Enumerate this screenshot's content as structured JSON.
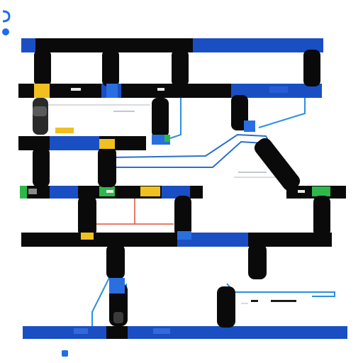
{
  "header": {
    "title_line": "",
    "subtitle_line": ""
  },
  "footer": {
    "left_caption": "",
    "right_caption": ""
  },
  "colors": {
    "bar_blue": "#1a4fc4",
    "bar_dark": "#0a0a0a",
    "pipe_blue": "#2b8fe0",
    "pipe_red": "#e0503a",
    "accent_yellow": "#f0c020",
    "accent_green": "#2fb84a",
    "brand_blue": "#1e6fe8",
    "text_gray": "#7a8794"
  },
  "icons": {
    "top_left_mark": "bracket-logo-icon",
    "top_left_dot": "blue-dot-icon",
    "footer_dot": "blue-square-icon"
  }
}
